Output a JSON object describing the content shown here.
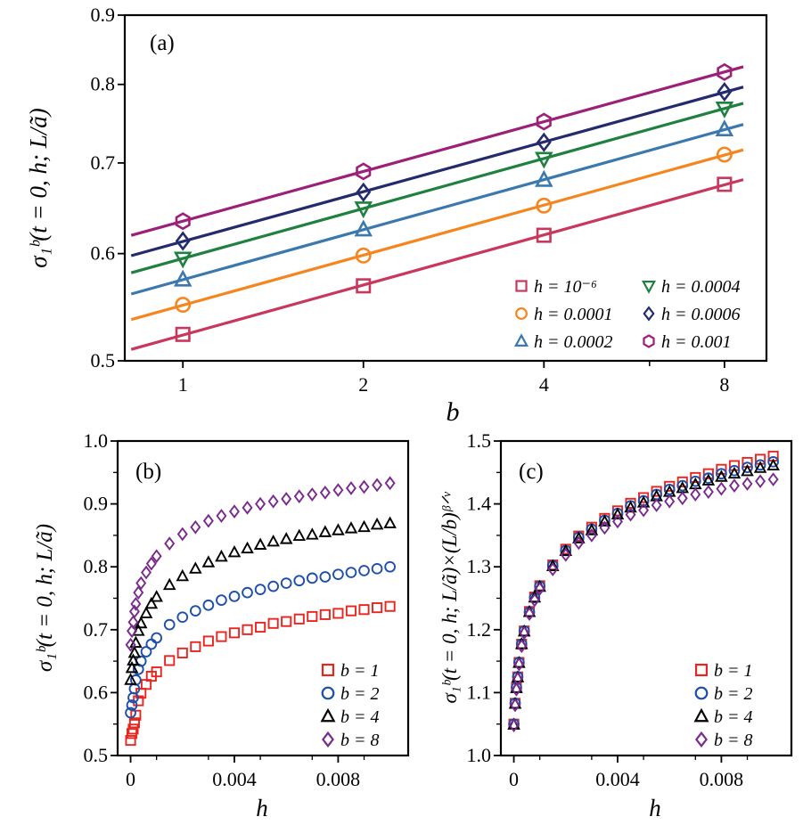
{
  "chart_data": [
    {
      "panel_label": "(a)",
      "type": "scatter",
      "xlabel": "b",
      "ylabel": "σ₁ᵇ(t = 0, h; L/ã)",
      "xscale": "log",
      "yscale": "log",
      "xlim": [
        0.8,
        9.4
      ],
      "ylim": [
        0.5,
        0.9
      ],
      "xticks": [
        1,
        2,
        4,
        8
      ],
      "xtick_labels": [
        "1",
        "2",
        "4",
        "8"
      ],
      "yticks": [
        0.5,
        0.6,
        0.7,
        0.8,
        0.9
      ],
      "ytick_labels": [
        "0.5",
        "0.6",
        "0.7",
        "0.8",
        "0.9"
      ],
      "fit_lines": true,
      "legend_position": "bottom-right",
      "x": [
        1,
        2,
        4,
        8
      ],
      "series": [
        {
          "name": "h = 10⁻⁶",
          "color": "#c8375c",
          "marker": "square",
          "values": [
            0.523,
            0.568,
            0.619,
            0.675
          ]
        },
        {
          "name": "h = 0.0001",
          "color": "#f5861f",
          "marker": "circle",
          "values": [
            0.55,
            0.598,
            0.651,
            0.71
          ]
        },
        {
          "name": "h = 0.0002",
          "color": "#3a78b0",
          "marker": "triangle-up",
          "values": [
            0.574,
            0.625,
            0.68,
            0.741
          ]
        },
        {
          "name": "h = 0.0004",
          "color": "#1f8040",
          "marker": "triangle-down",
          "values": [
            0.595,
            0.648,
            0.705,
            0.768
          ]
        },
        {
          "name": "h = 0.0006",
          "color": "#232b6e",
          "marker": "diamond",
          "values": [
            0.613,
            0.666,
            0.725,
            0.79
          ]
        },
        {
          "name": "h = 0.001",
          "color": "#9c1f78",
          "marker": "hexagon",
          "values": [
            0.634,
            0.69,
            0.751,
            0.817
          ]
        }
      ]
    },
    {
      "panel_label": "(b)",
      "type": "scatter",
      "xlabel": "h",
      "ylabel": "σ₁ᵇ(t = 0, h; L/ã)",
      "xscale": "linear",
      "yscale": "linear",
      "xlim": [
        -0.0005,
        0.0107
      ],
      "ylim": [
        0.5,
        1.0
      ],
      "xticks": [
        0,
        0.004,
        0.008
      ],
      "xtick_labels": [
        "0",
        "0.004",
        "0.008"
      ],
      "yticks": [
        0.5,
        0.6,
        0.7,
        0.8,
        0.9,
        1.0
      ],
      "ytick_labels": [
        "0.5",
        "0.6",
        "0.7",
        "0.8",
        "0.9",
        "1.0"
      ],
      "legend_position": "bottom-right",
      "x": [
        0,
        5e-05,
        0.0001,
        0.00015,
        0.0002,
        0.0003,
        0.0004,
        0.0006,
        0.0008,
        0.001,
        0.0015,
        0.002,
        0.0025,
        0.003,
        0.0035,
        0.004,
        0.0045,
        0.005,
        0.0055,
        0.006,
        0.0065,
        0.007,
        0.0075,
        0.008,
        0.0085,
        0.009,
        0.0095,
        0.01
      ],
      "series": [
        {
          "name": "b = 1",
          "color": "#e8251f",
          "marker": "square",
          "values": [
            0.524,
            0.535,
            0.542,
            0.552,
            0.564,
            0.587,
            0.599,
            0.613,
            0.626,
            0.633,
            0.651,
            0.663,
            0.673,
            0.682,
            0.689,
            0.695,
            0.7,
            0.704,
            0.71,
            0.713,
            0.717,
            0.721,
            0.724,
            0.726,
            0.73,
            0.732,
            0.735,
            0.737
          ]
        },
        {
          "name": "b = 2",
          "color": "#1f4fa8",
          "marker": "circle",
          "values": [
            0.568,
            0.58,
            0.592,
            0.606,
            0.62,
            0.637,
            0.65,
            0.665,
            0.677,
            0.687,
            0.708,
            0.72,
            0.73,
            0.739,
            0.747,
            0.753,
            0.759,
            0.764,
            0.769,
            0.774,
            0.778,
            0.782,
            0.784,
            0.788,
            0.791,
            0.794,
            0.797,
            0.8
          ]
        },
        {
          "name": "b = 4",
          "color": "#000000",
          "marker": "triangle-up",
          "values": [
            0.62,
            0.639,
            0.651,
            0.663,
            0.679,
            0.698,
            0.71,
            0.726,
            0.741,
            0.752,
            0.771,
            0.785,
            0.797,
            0.807,
            0.816,
            0.823,
            0.829,
            0.835,
            0.84,
            0.844,
            0.849,
            0.851,
            0.855,
            0.858,
            0.861,
            0.863,
            0.867,
            0.869
          ]
        },
        {
          "name": "b = 8",
          "color": "#7a2a8c",
          "marker": "diamond",
          "values": [
            0.676,
            0.698,
            0.712,
            0.729,
            0.741,
            0.759,
            0.774,
            0.791,
            0.805,
            0.817,
            0.837,
            0.852,
            0.863,
            0.873,
            0.881,
            0.888,
            0.894,
            0.9,
            0.904,
            0.908,
            0.912,
            0.915,
            0.918,
            0.922,
            0.925,
            0.927,
            0.93,
            0.933
          ]
        }
      ]
    },
    {
      "panel_label": "(c)",
      "type": "scatter",
      "xlabel": "h",
      "ylabel": "σ₁ᵇ(t = 0, h; L/ã)×(L/b)ᵝᐟᵛ",
      "xscale": "linear",
      "yscale": "linear",
      "xlim": [
        -0.0005,
        0.0107
      ],
      "ylim": [
        1.0,
        1.5
      ],
      "xticks": [
        0,
        0.004,
        0.008
      ],
      "xtick_labels": [
        "0",
        "0.004",
        "0.008"
      ],
      "yticks": [
        1.0,
        1.1,
        1.2,
        1.3,
        1.4,
        1.5
      ],
      "ytick_labels": [
        "1.0",
        "1.1",
        "1.2",
        "1.3",
        "1.4",
        "1.5"
      ],
      "legend_position": "bottom-right",
      "x": [
        0,
        5e-05,
        0.0001,
        0.00015,
        0.0002,
        0.0003,
        0.0004,
        0.0006,
        0.0008,
        0.001,
        0.0015,
        0.002,
        0.0025,
        0.003,
        0.0035,
        0.004,
        0.0045,
        0.005,
        0.0055,
        0.006,
        0.0065,
        0.007,
        0.0075,
        0.008,
        0.0085,
        0.009,
        0.0095,
        0.01
      ],
      "series": [
        {
          "name": "b = 1",
          "color": "#e8251f",
          "marker": "square",
          "values": [
            1.05,
            1.083,
            1.108,
            1.125,
            1.148,
            1.177,
            1.198,
            1.229,
            1.252,
            1.27,
            1.303,
            1.328,
            1.349,
            1.363,
            1.377,
            1.389,
            1.401,
            1.41,
            1.42,
            1.428,
            1.435,
            1.442,
            1.448,
            1.455,
            1.461,
            1.466,
            1.471,
            1.476
          ]
        },
        {
          "name": "b = 2",
          "color": "#1f4fa8",
          "marker": "circle",
          "values": [
            1.05,
            1.083,
            1.108,
            1.125,
            1.148,
            1.177,
            1.198,
            1.228,
            1.251,
            1.269,
            1.302,
            1.326,
            1.347,
            1.36,
            1.374,
            1.385,
            1.397,
            1.405,
            1.415,
            1.423,
            1.429,
            1.436,
            1.441,
            1.448,
            1.453,
            1.458,
            1.462,
            1.467
          ]
        },
        {
          "name": "b = 4",
          "color": "#000000",
          "marker": "triangle-up",
          "values": [
            1.049,
            1.082,
            1.107,
            1.124,
            1.147,
            1.177,
            1.197,
            1.228,
            1.251,
            1.268,
            1.301,
            1.325,
            1.345,
            1.358,
            1.372,
            1.383,
            1.394,
            1.402,
            1.412,
            1.419,
            1.425,
            1.431,
            1.437,
            1.443,
            1.448,
            1.452,
            1.457,
            1.461
          ]
        },
        {
          "name": "b = 8",
          "color": "#7a2a8c",
          "marker": "diamond",
          "values": [
            1.048,
            1.08,
            1.105,
            1.122,
            1.145,
            1.174,
            1.195,
            1.225,
            1.247,
            1.265,
            1.296,
            1.319,
            1.338,
            1.35,
            1.362,
            1.372,
            1.383,
            1.39,
            1.398,
            1.404,
            1.409,
            1.415,
            1.419,
            1.424,
            1.429,
            1.432,
            1.436,
            1.439
          ]
        }
      ]
    }
  ]
}
